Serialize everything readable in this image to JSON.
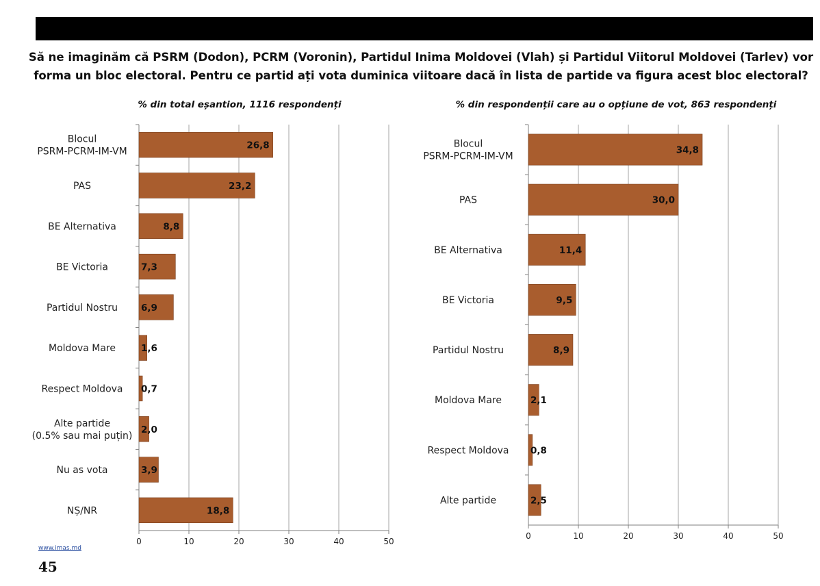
{
  "title": "Să ne imaginăm că PSRM (Dodon), PCRM (Voronin), Partidul Inima Moldovei (Vlah) și Partidul Viitorul Moldovei (Tarlev) vor forma un bloc electoral. Pentru ce partid ați vota duminica viitoare dacă în lista de partide va figura acest bloc electoral?",
  "footer": {
    "url": "www.imas.md",
    "page_number": "45"
  },
  "colors": {
    "bar": "#a95d2e",
    "bar_stroke": "#7a3f1d",
    "grid": "#a6a6a6",
    "axis": "#7f7f7f",
    "topbar": "#000000"
  },
  "chart_data": [
    {
      "type": "bar",
      "orientation": "horizontal",
      "title": "% din total eșantion, 1116 respondenți",
      "categories": [
        "Blocul\nPSRM-PCRM-IM-VM",
        "PAS",
        "BE Alternativa",
        "BE Victoria",
        "Partidul Nostru",
        "Moldova Mare",
        "Respect Moldova",
        "Alte partide\n(0.5% sau mai puțin)",
        "Nu as vota",
        "NȘ/NR"
      ],
      "values": [
        26.8,
        23.2,
        8.8,
        7.3,
        6.9,
        1.6,
        0.7,
        2.0,
        3.9,
        18.8
      ],
      "value_labels": [
        "26,8",
        "23,2",
        "8,8",
        "7,3",
        "6,9",
        "1,6",
        "0,7",
        "2,0",
        "3,9",
        "18,8"
      ],
      "xlim": [
        0,
        50
      ],
      "xticks": [
        "0",
        "10",
        "20",
        "30",
        "40",
        "50"
      ],
      "grid": true
    },
    {
      "type": "bar",
      "orientation": "horizontal",
      "title": "% din respondenții care au o opțiune de vot, 863 respondenți",
      "categories": [
        "Blocul\nPSRM-PCRM-IM-VM",
        "PAS",
        "BE Alternativa",
        "BE Victoria",
        "Partidul Nostru",
        "Moldova Mare",
        "Respect Moldova",
        "Alte partide"
      ],
      "values": [
        34.8,
        30.0,
        11.4,
        9.5,
        8.9,
        2.1,
        0.8,
        2.5
      ],
      "value_labels": [
        "34,8",
        "30,0",
        "11,4",
        "9,5",
        "8,9",
        "2,1",
        "0,8",
        "2,5"
      ],
      "xlim": [
        0,
        50
      ],
      "xticks": [
        "0",
        "10",
        "20",
        "30",
        "40",
        "50"
      ],
      "grid": true
    }
  ]
}
